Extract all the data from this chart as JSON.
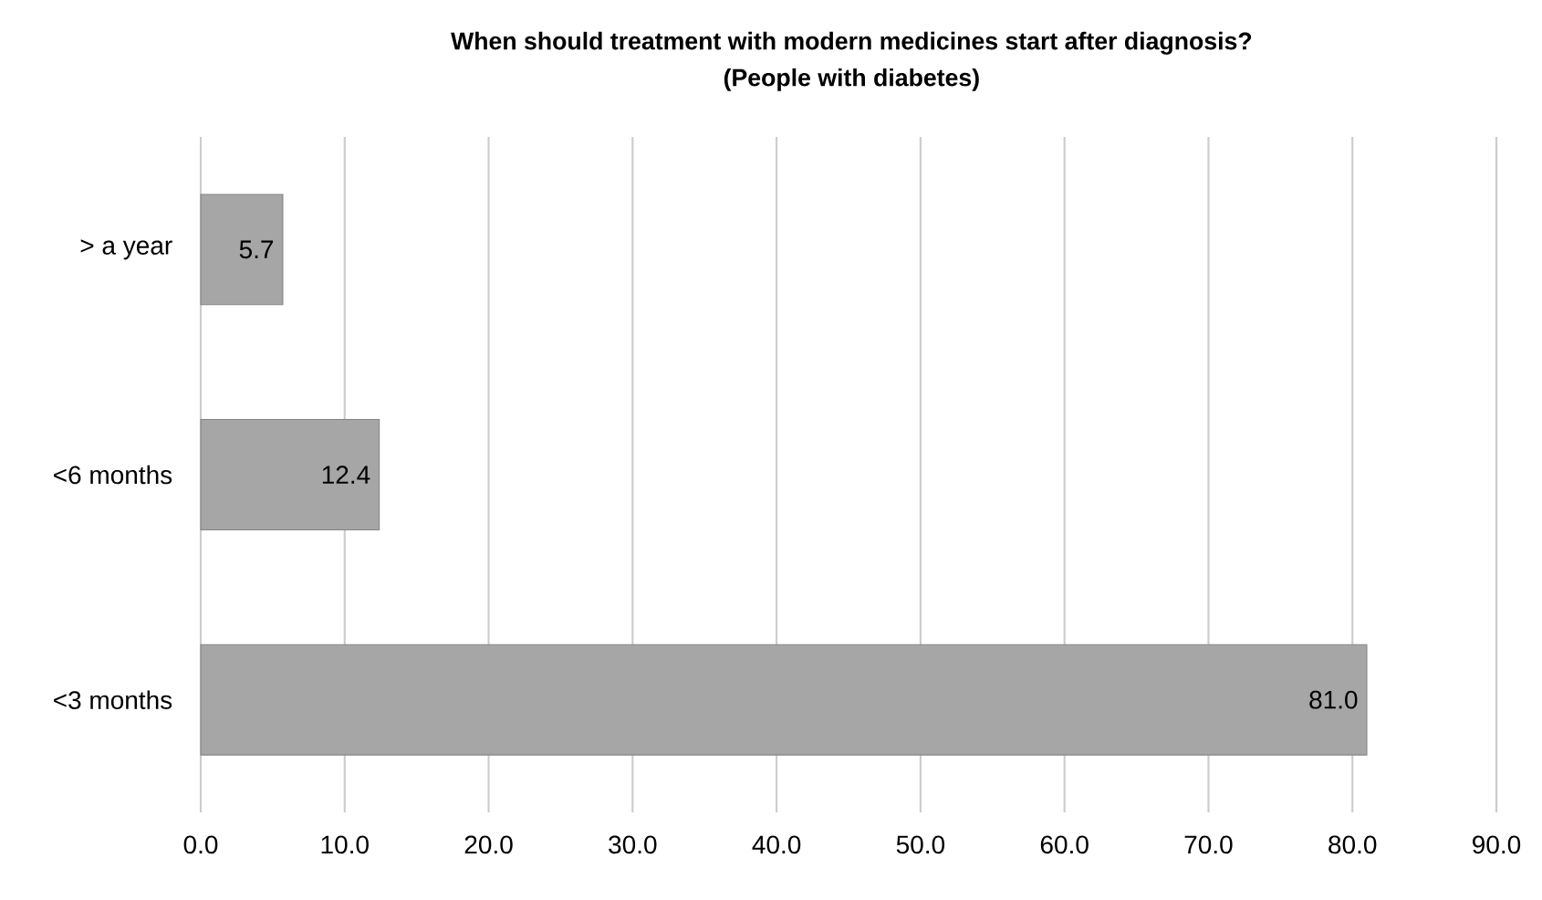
{
  "chart_data": {
    "type": "bar",
    "orientation": "horizontal",
    "title": "When should treatment with modern medicines start after diagnosis?",
    "subtitle": "(People with diabetes)",
    "categories": [
      "> a year",
      "<6 months",
      "<3 months"
    ],
    "values": [
      5.7,
      12.4,
      81.0
    ],
    "value_labels": [
      "5.7",
      "12.4",
      "81.0"
    ],
    "color": "#a6a6a6",
    "xlim": [
      0,
      90
    ],
    "xticks": [
      {
        "value": 0,
        "label": "0.0"
      },
      {
        "value": 10,
        "label": "10.0"
      },
      {
        "value": 20,
        "label": "20.0"
      },
      {
        "value": 30,
        "label": "30.0"
      },
      {
        "value": 40,
        "label": "40.0"
      },
      {
        "value": 50,
        "label": "50.0"
      },
      {
        "value": 60,
        "label": "60.0"
      },
      {
        "value": 70,
        "label": "70.0"
      },
      {
        "value": 80,
        "label": "80.0"
      },
      {
        "value": 90,
        "label": "90.0"
      }
    ],
    "grid": "x"
  }
}
